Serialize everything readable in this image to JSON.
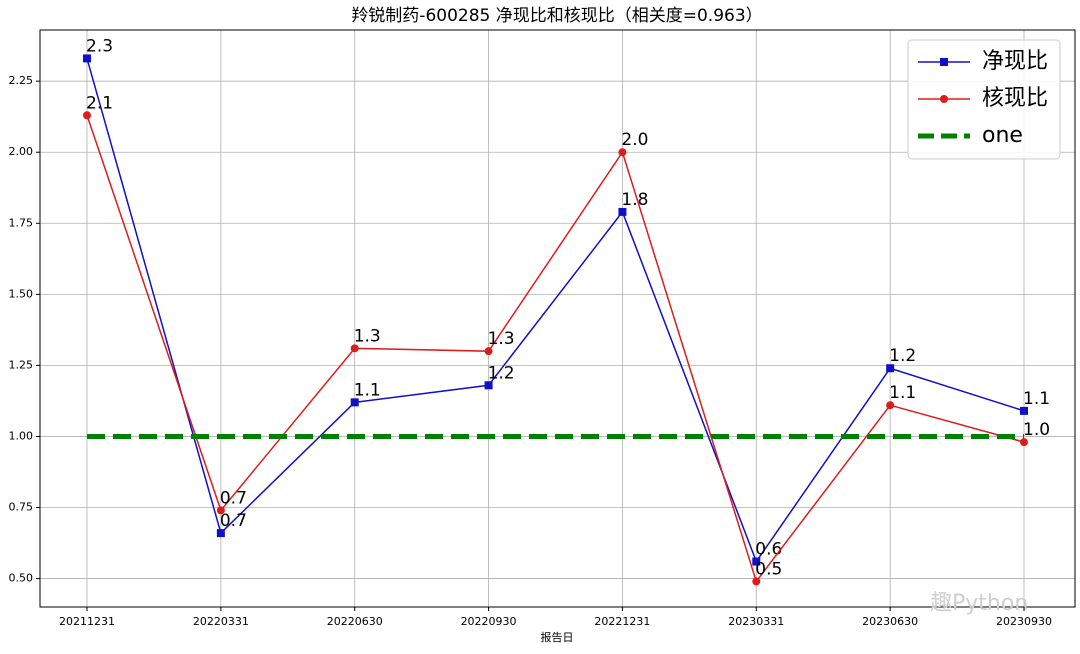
{
  "chart_data": {
    "type": "line",
    "title": "羚锐制药-600285 净现比和核现比（相关度=0.963）",
    "x_label": "报告日",
    "categories": [
      "20211231",
      "20220331",
      "20220630",
      "20220930",
      "20221231",
      "20230331",
      "20230630",
      "20230930"
    ],
    "series": [
      {
        "name": "净现比",
        "color": "#1010c8",
        "marker": "square",
        "values": [
          2.33,
          0.66,
          1.12,
          1.18,
          1.79,
          0.56,
          1.24,
          1.09
        ],
        "value_labels": [
          "2.3",
          "0.7",
          "1.1",
          "1.2",
          "1.8",
          "0.6",
          "1.2",
          "1.1"
        ]
      },
      {
        "name": "核现比",
        "color": "#dd1c1c",
        "marker": "circle",
        "values": [
          2.13,
          0.74,
          1.31,
          1.3,
          2.0,
          0.49,
          1.11,
          0.98
        ],
        "value_labels": [
          "2.1",
          "0.7",
          "1.3",
          "1.3",
          "2.0",
          "0.5",
          "1.1",
          "1.0"
        ]
      },
      {
        "name": "one",
        "color": "#008000",
        "dashed": true,
        "values": [
          1,
          1,
          1,
          1,
          1,
          1,
          1,
          1
        ]
      }
    ],
    "ylim": [
      0.4,
      2.43
    ],
    "yticks": [
      {
        "value": 0.5,
        "label": "0.50"
      },
      {
        "value": 0.75,
        "label": "0.75"
      },
      {
        "value": 1.0,
        "label": "1.00"
      },
      {
        "value": 1.25,
        "label": "1.25"
      },
      {
        "value": 1.5,
        "label": "1.50"
      },
      {
        "value": 1.75,
        "label": "1.75"
      },
      {
        "value": 2.0,
        "label": "2.00"
      },
      {
        "value": 2.25,
        "label": "2.25"
      }
    ],
    "grid": true,
    "legend": "upper right",
    "watermark": "趣Python"
  }
}
